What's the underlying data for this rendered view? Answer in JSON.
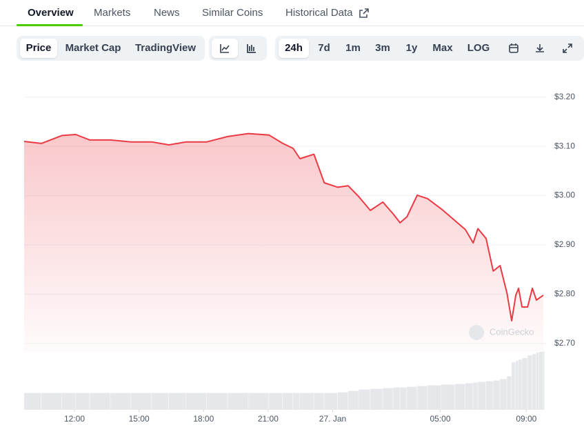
{
  "tabs": [
    "Overview",
    "Markets",
    "News",
    "Similar Coins",
    "Historical Data"
  ],
  "active_tab": 0,
  "toolbar": {
    "views": [
      "Price",
      "Market Cap",
      "TradingView"
    ],
    "active_view": 0,
    "ranges": [
      "24h",
      "7d",
      "1m",
      "3m",
      "1y",
      "Max",
      "LOG"
    ],
    "active_range": 0
  },
  "chart_data": {
    "type": "line",
    "watermark": "CoinGecko",
    "color": "#ea3943",
    "x": [
      9.66,
      10.46,
      11.42,
      12.06,
      12.71,
      13.67,
      14.63,
      15.59,
      16.39,
      17.19,
      18.15,
      19.12,
      20.08,
      21.04,
      21.68,
      22.16,
      22.48,
      23.13,
      23.61,
      24.24,
      24.72,
      25.21,
      25.75,
      26.33,
      26.81,
      27.13,
      27.45,
      27.93,
      28.41,
      29.05,
      29.69,
      30.17,
      30.53,
      30.75,
      31.13,
      31.46,
      31.78,
      32.1,
      32.32,
      32.51,
      32.64,
      32.8,
      33.06,
      33.28,
      33.47,
      33.6,
      33.79
    ],
    "series": [
      {
        "name": "Price",
        "color": "#ea3943",
        "values": [
          3.11,
          3.106,
          3.122,
          3.124,
          3.113,
          3.113,
          3.109,
          3.109,
          3.103,
          3.109,
          3.109,
          3.12,
          3.126,
          3.123,
          3.106,
          3.096,
          3.075,
          3.084,
          3.026,
          3.017,
          3.02,
          2.998,
          2.97,
          2.987,
          2.963,
          2.945,
          2.957,
          3.001,
          2.994,
          2.973,
          2.949,
          2.931,
          2.904,
          2.933,
          2.913,
          2.847,
          2.858,
          2.802,
          2.746,
          2.798,
          2.812,
          2.774,
          2.774,
          2.812,
          2.788,
          2.792,
          2.798
        ]
      },
      {
        "name": "Volume",
        "color": "#e5e7eb",
        "values": [
          24,
          24,
          24,
          24,
          24,
          24,
          24,
          24,
          24,
          24,
          24,
          24,
          24,
          24,
          24,
          24,
          24,
          24,
          24,
          25,
          27,
          29,
          30,
          31,
          32,
          32,
          33,
          34,
          35,
          36,
          37,
          38,
          39,
          40,
          41,
          42,
          44,
          48,
          68,
          70,
          72,
          74,
          78,
          80,
          82,
          83,
          84
        ]
      }
    ],
    "xlim": [
      9.66,
      33.79
    ],
    "xticks": [
      {
        "value": 12,
        "label": "12:00"
      },
      {
        "value": 15,
        "label": "15:00"
      },
      {
        "value": 18,
        "label": "18:00"
      },
      {
        "value": 21,
        "label": "21:00"
      },
      {
        "value": 24,
        "label": "27. Jan"
      },
      {
        "value": 29,
        "label": "05:00"
      },
      {
        "value": 33,
        "label": "09:00"
      }
    ],
    "ylim": [
      2.683,
      3.243
    ],
    "yticks": [
      {
        "value": 2.7,
        "label": "$2.70"
      },
      {
        "value": 2.8,
        "label": "$2.80"
      },
      {
        "value": 2.9,
        "label": "$2.90"
      },
      {
        "value": 3.0,
        "label": "$3.00"
      },
      {
        "value": 3.1,
        "label": "$3.10"
      },
      {
        "value": 3.2,
        "label": "$3.20"
      }
    ],
    "grid": true
  }
}
